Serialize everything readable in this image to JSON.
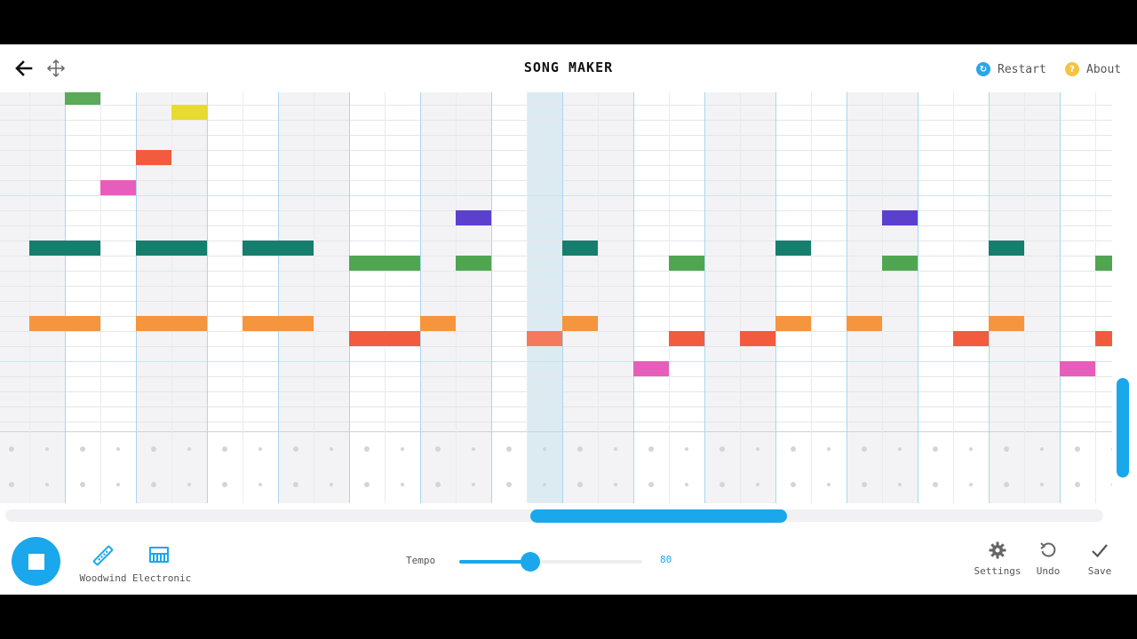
{
  "header": {
    "title": "SONG MAKER",
    "back_icon": "arrow-left-icon",
    "move_icon": "move-arrows-icon",
    "restart_label": "Restart",
    "about_label": "About",
    "restart_icon": "restart-circle-icon",
    "about_icon": "question-circle-icon"
  },
  "grid": {
    "columns": 32,
    "melody_rows": 22,
    "percussion_rows": 2,
    "current_column": 15,
    "notes": [
      {
        "col": 2,
        "row": 0,
        "span": 1,
        "color": "#5aaa5a"
      },
      {
        "col": 5,
        "row": 1,
        "span": 1,
        "color": "#e8db2e"
      },
      {
        "col": 4,
        "row": 4,
        "span": 1,
        "color": "#f35b3e"
      },
      {
        "col": 3,
        "row": 6,
        "span": 1,
        "color": "#e75dbb"
      },
      {
        "col": 13,
        "row": 8,
        "span": 1,
        "color": "#5b3fcf"
      },
      {
        "col": 25,
        "row": 8,
        "span": 1,
        "color": "#5b3fcf"
      },
      {
        "col": 1,
        "row": 10,
        "span": 2,
        "color": "#157e6c"
      },
      {
        "col": 4,
        "row": 10,
        "span": 2,
        "color": "#157e6c"
      },
      {
        "col": 7,
        "row": 10,
        "span": 2,
        "color": "#157e6c"
      },
      {
        "col": 16,
        "row": 10,
        "span": 1,
        "color": "#157e6c"
      },
      {
        "col": 22,
        "row": 10,
        "span": 1,
        "color": "#157e6c"
      },
      {
        "col": 28,
        "row": 10,
        "span": 1,
        "color": "#157e6c"
      },
      {
        "col": 10,
        "row": 11,
        "span": 2,
        "color": "#50a650"
      },
      {
        "col": 13,
        "row": 11,
        "span": 1,
        "color": "#50a650"
      },
      {
        "col": 19,
        "row": 11,
        "span": 1,
        "color": "#50a650"
      },
      {
        "col": 25,
        "row": 11,
        "span": 1,
        "color": "#50a650"
      },
      {
        "col": 31,
        "row": 11,
        "span": 1,
        "color": "#50a650"
      },
      {
        "col": 1,
        "row": 15,
        "span": 2,
        "color": "#f5953e"
      },
      {
        "col": 4,
        "row": 15,
        "span": 2,
        "color": "#f5953e"
      },
      {
        "col": 7,
        "row": 15,
        "span": 2,
        "color": "#f5953e"
      },
      {
        "col": 12,
        "row": 15,
        "span": 1,
        "color": "#f5953e"
      },
      {
        "col": 16,
        "row": 15,
        "span": 1,
        "color": "#f5953e"
      },
      {
        "col": 22,
        "row": 15,
        "span": 1,
        "color": "#f5953e"
      },
      {
        "col": 24,
        "row": 15,
        "span": 1,
        "color": "#f5953e"
      },
      {
        "col": 28,
        "row": 15,
        "span": 1,
        "color": "#f5953e"
      },
      {
        "col": 10,
        "row": 16,
        "span": 2,
        "color": "#f35b3e"
      },
      {
        "col": 15,
        "row": 16,
        "span": 1,
        "color": "#f47a5c"
      },
      {
        "col": 19,
        "row": 16,
        "span": 1,
        "color": "#f35b3e"
      },
      {
        "col": 21,
        "row": 16,
        "span": 1,
        "color": "#f35b3e"
      },
      {
        "col": 27,
        "row": 16,
        "span": 1,
        "color": "#f35b3e"
      },
      {
        "col": 31,
        "row": 16,
        "span": 1,
        "color": "#f35b3e"
      },
      {
        "col": 18,
        "row": 18,
        "span": 1,
        "color": "#e75dbb"
      },
      {
        "col": 30,
        "row": 18,
        "span": 1,
        "color": "#e75dbb"
      }
    ]
  },
  "footer": {
    "play_icon": "stop-square-icon",
    "instrument_1": {
      "label": "Woodwind",
      "icon": "flute-icon"
    },
    "instrument_2": {
      "label": "Electronic",
      "icon": "synth-keyboard-icon"
    },
    "tempo_label": "Tempo",
    "tempo_value": "80",
    "tempo_fraction": 0.39,
    "settings_label": "Settings",
    "undo_label": "Undo",
    "save_label": "Save"
  },
  "colors": {
    "accent": "#1aa7ec",
    "restart": "#2aa6e8",
    "about": "#f6c343"
  }
}
